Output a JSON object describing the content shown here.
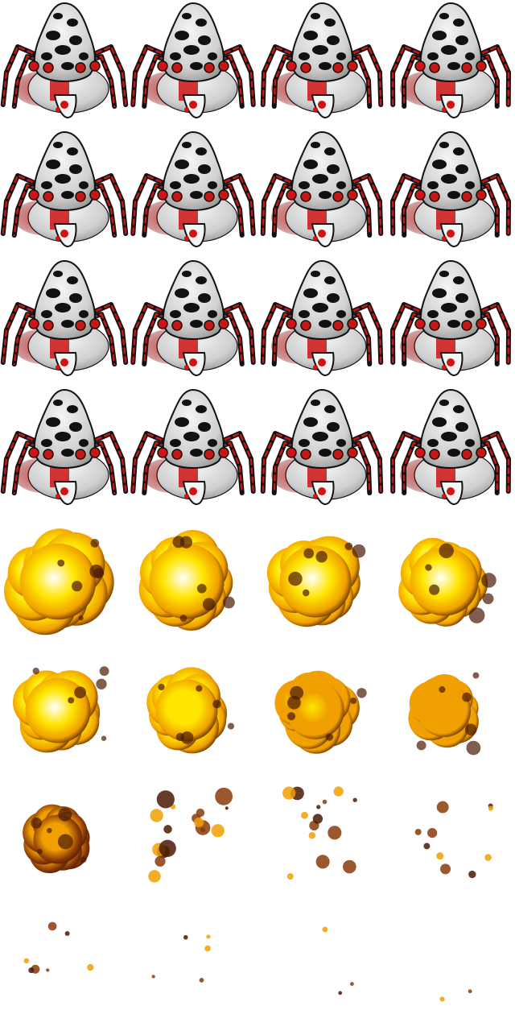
{
  "sheet": {
    "columns": 4,
    "rows": 8,
    "background": "#ffffff"
  },
  "spider_frames": {
    "count": 16,
    "colors": {
      "body_light": "#f4f4f4",
      "body_shade": "#9a9a9a",
      "outline": "#111111",
      "red": "#cc1414",
      "red_dark": "#7a0a0a",
      "red_soft": "#e06060"
    }
  },
  "explosion_frames": {
    "count": 16,
    "stages": [
      1.0,
      0.98,
      0.92,
      0.86,
      0.8,
      0.74,
      0.66,
      0.58,
      0.5,
      0.42,
      0.34,
      0.26,
      0.18,
      0.12,
      0.08,
      0.05
    ],
    "colors": {
      "core_white": "#ffffff",
      "yellow": "#ffe600",
      "orange": "#f0a000",
      "brown": "#8a3a08",
      "dark": "#4a1a04"
    }
  }
}
